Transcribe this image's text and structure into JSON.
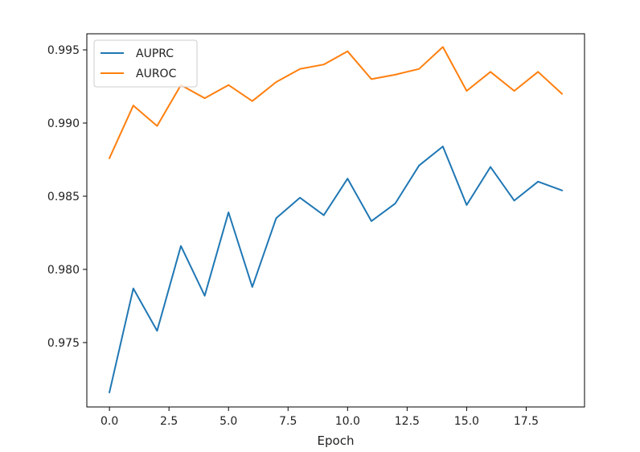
{
  "chart_data": {
    "type": "line",
    "title": "",
    "xlabel": "Epoch",
    "ylabel": "",
    "xlim": [
      -0.95,
      19.95
    ],
    "ylim": [
      0.9706,
      0.9961
    ],
    "xticks": [
      0.0,
      2.5,
      5.0,
      7.5,
      10.0,
      12.5,
      15.0,
      17.5
    ],
    "xtick_labels": [
      "0.0",
      "2.5",
      "5.0",
      "7.5",
      "10.0",
      "12.5",
      "15.0",
      "17.5"
    ],
    "yticks": [
      0.975,
      0.98,
      0.985,
      0.99,
      0.995
    ],
    "ytick_labels": [
      "0.975",
      "0.980",
      "0.985",
      "0.990",
      "0.995"
    ],
    "grid": false,
    "legend_position": "upper-left",
    "x": [
      0,
      1,
      2,
      3,
      4,
      5,
      6,
      7,
      8,
      9,
      10,
      11,
      12,
      13,
      14,
      15,
      16,
      17,
      18,
      19
    ],
    "series": [
      {
        "name": "AUPRC",
        "color": "#1f77b4",
        "values": [
          0.9716,
          0.9787,
          0.9758,
          0.9816,
          0.9782,
          0.9839,
          0.9788,
          0.9835,
          0.9849,
          0.9837,
          0.9862,
          0.9833,
          0.9845,
          0.9871,
          0.9884,
          0.9844,
          0.987,
          0.9847,
          0.986,
          0.9854
        ]
      },
      {
        "name": "AUROC",
        "color": "#ff7f0e",
        "values": [
          0.9876,
          0.9912,
          0.9898,
          0.9926,
          0.9917,
          0.9926,
          0.9915,
          0.9928,
          0.9937,
          0.994,
          0.9949,
          0.993,
          0.9933,
          0.9937,
          0.9952,
          0.9922,
          0.9935,
          0.9922,
          0.9935,
          0.992
        ]
      }
    ]
  }
}
